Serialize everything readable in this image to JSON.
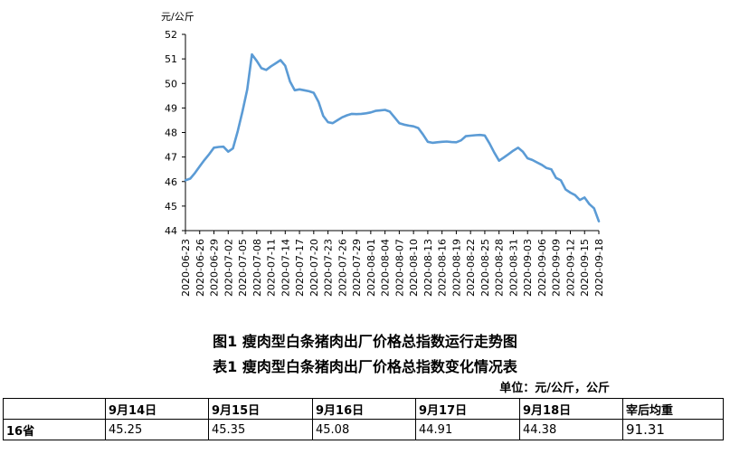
{
  "chart_data": {
    "type": "line",
    "ylabel": "元/公斤",
    "ylim": [
      44,
      52
    ],
    "yticks": [
      44,
      45,
      46,
      47,
      48,
      49,
      50,
      51,
      52
    ],
    "xticks": [
      "2020-06-23",
      "2020-06-26",
      "2020-06-29",
      "2020-07-02",
      "2020-07-05",
      "2020-07-08",
      "2020-07-11",
      "2020-07-14",
      "2020-07-17",
      "2020-07-20",
      "2020-07-23",
      "2020-07-26",
      "2020-07-29",
      "2020-08-01",
      "2020-08-04",
      "2020-08-07",
      "2020-08-10",
      "2020-08-13",
      "2020-08-16",
      "2020-08-19",
      "2020-08-22",
      "2020-08-25",
      "2020-08-28",
      "2020-08-31",
      "2020-09-03",
      "2020-09-06",
      "2020-09-09",
      "2020-09-12",
      "2020-09-15",
      "2020-09-18"
    ],
    "x": [
      "2020-06-23",
      "2020-06-24",
      "2020-06-25",
      "2020-06-26",
      "2020-06-27",
      "2020-06-28",
      "2020-06-29",
      "2020-06-30",
      "2020-07-01",
      "2020-07-02",
      "2020-07-03",
      "2020-07-04",
      "2020-07-05",
      "2020-07-06",
      "2020-07-07",
      "2020-07-08",
      "2020-07-09",
      "2020-07-10",
      "2020-07-11",
      "2020-07-12",
      "2020-07-13",
      "2020-07-14",
      "2020-07-15",
      "2020-07-16",
      "2020-07-17",
      "2020-07-18",
      "2020-07-19",
      "2020-07-20",
      "2020-07-21",
      "2020-07-22",
      "2020-07-23",
      "2020-07-24",
      "2020-07-25",
      "2020-07-26",
      "2020-07-27",
      "2020-07-28",
      "2020-07-29",
      "2020-07-30",
      "2020-07-31",
      "2020-08-01",
      "2020-08-02",
      "2020-08-03",
      "2020-08-04",
      "2020-08-05",
      "2020-08-06",
      "2020-08-07",
      "2020-08-08",
      "2020-08-09",
      "2020-08-10",
      "2020-08-11",
      "2020-08-12",
      "2020-08-13",
      "2020-08-14",
      "2020-08-15",
      "2020-08-16",
      "2020-08-17",
      "2020-08-18",
      "2020-08-19",
      "2020-08-20",
      "2020-08-21",
      "2020-08-22",
      "2020-08-23",
      "2020-08-24",
      "2020-08-25",
      "2020-08-26",
      "2020-08-27",
      "2020-08-28",
      "2020-08-29",
      "2020-08-30",
      "2020-08-31",
      "2020-09-01",
      "2020-09-02",
      "2020-09-03",
      "2020-09-04",
      "2020-09-05",
      "2020-09-06",
      "2020-09-07",
      "2020-09-08",
      "2020-09-09",
      "2020-09-10",
      "2020-09-11",
      "2020-09-12",
      "2020-09-13",
      "2020-09-14",
      "2020-09-15",
      "2020-09-16",
      "2020-09-17",
      "2020-09-18"
    ],
    "series": [
      {
        "color": "#5b9bd5",
        "values": [
          46.05,
          46.12,
          46.35,
          46.62,
          46.88,
          47.12,
          47.38,
          47.41,
          47.42,
          47.22,
          47.35,
          48.05,
          48.85,
          49.75,
          51.18,
          50.92,
          50.62,
          50.55,
          50.7,
          50.82,
          50.95,
          50.72,
          50.08,
          49.72,
          49.76,
          49.72,
          49.68,
          49.62,
          49.25,
          48.68,
          48.42,
          48.38,
          48.5,
          48.62,
          48.7,
          48.76,
          48.75,
          48.76,
          48.78,
          48.82,
          48.88,
          48.9,
          48.92,
          48.85,
          48.62,
          48.38,
          48.32,
          48.28,
          48.25,
          48.18,
          47.92,
          47.62,
          47.58,
          47.6,
          47.62,
          47.63,
          47.61,
          47.6,
          47.68,
          47.85,
          47.87,
          47.89,
          47.9,
          47.88,
          47.55,
          47.18,
          46.85,
          46.98,
          47.12,
          47.26,
          47.38,
          47.22,
          46.95,
          46.88,
          46.78,
          46.68,
          46.55,
          46.5,
          46.15,
          46.05,
          45.68,
          45.55,
          45.45,
          45.25,
          45.35,
          45.08,
          44.91,
          44.38
        ]
      }
    ],
    "grid": false
  },
  "captions": {
    "figure": "图1 瘦肉型白条猪肉出厂价格总指数运行走势图",
    "table": "表1 瘦肉型白条猪肉出厂价格总指数变化情况表"
  },
  "unit_note": "单位：元/公斤，公斤",
  "table": {
    "headers": [
      "",
      "9月14日",
      "9月15日",
      "9月16日",
      "9月17日",
      "9月18日",
      "宰后均重"
    ],
    "row_label": "16省",
    "values": [
      "45.25",
      "45.35",
      "45.08",
      "44.91",
      "44.38",
      "91.31"
    ]
  }
}
